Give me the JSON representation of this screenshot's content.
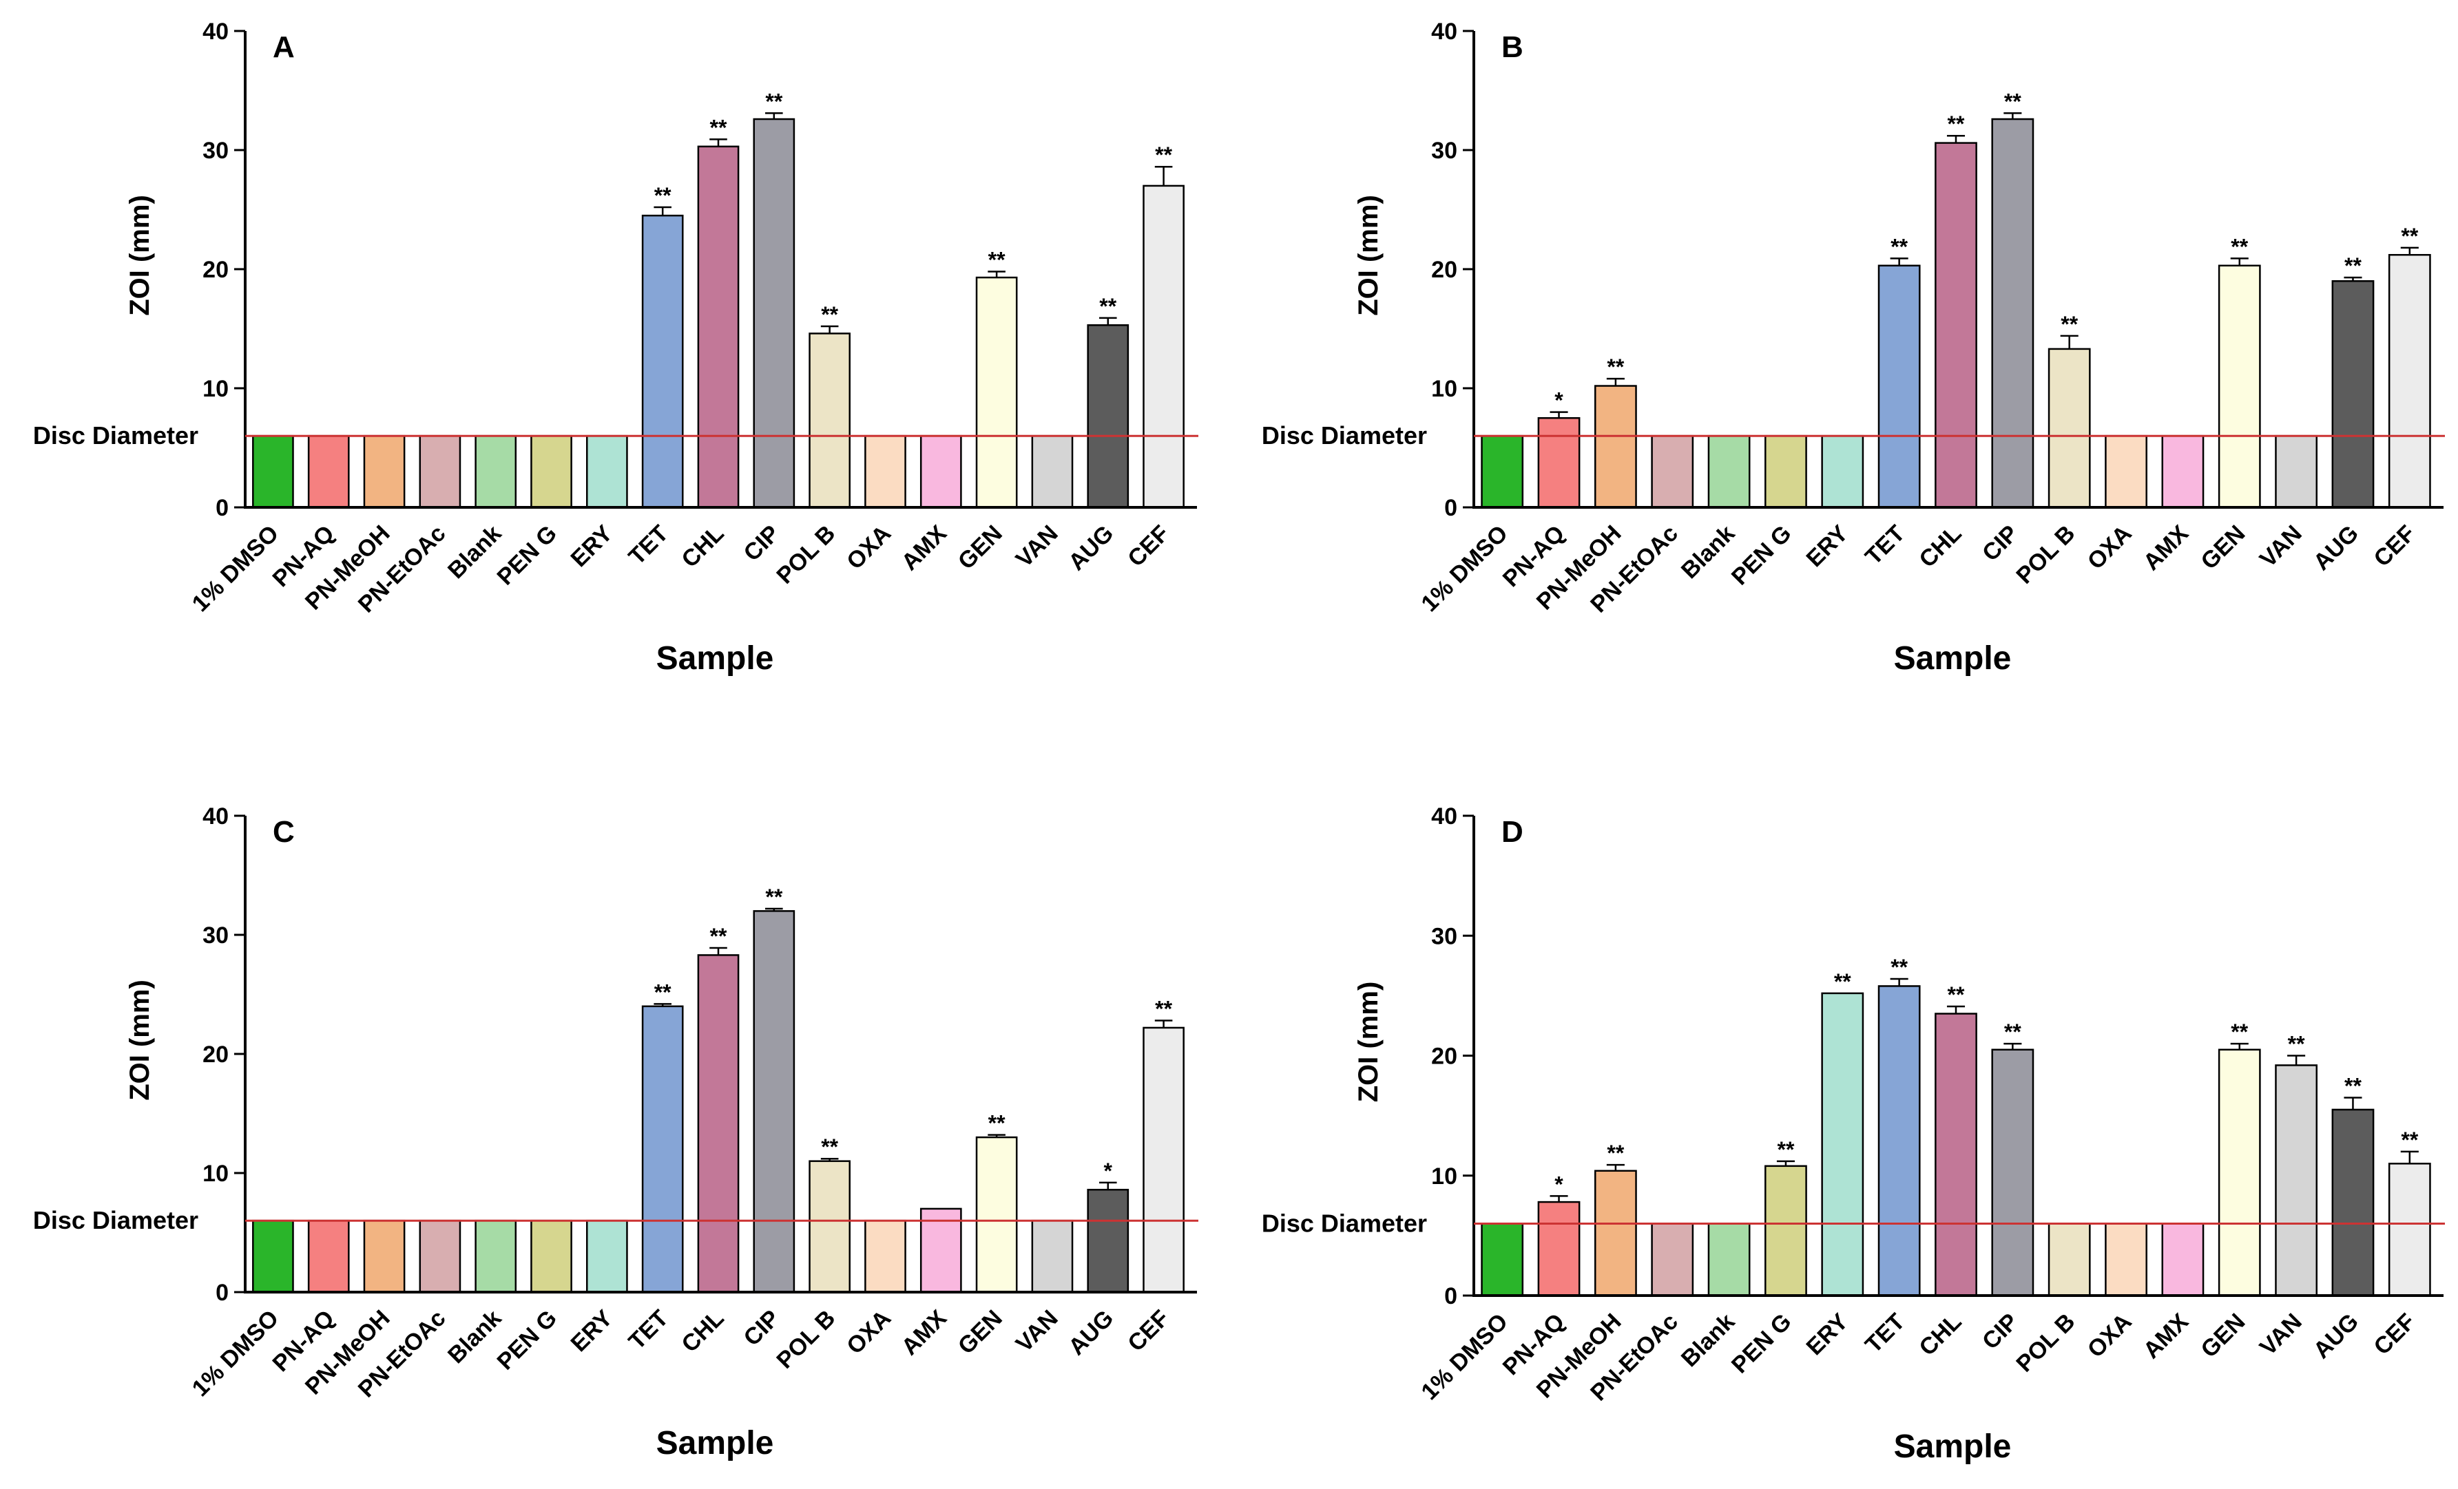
{
  "chart_data": [
    {
      "type": "bar",
      "panel_label": "A",
      "xlabel": "Sample",
      "ylabel": "ZOI (mm)",
      "ylim": [
        0,
        40
      ],
      "yticks": [
        "0",
        "10",
        "20",
        "30",
        "40"
      ],
      "reference_line": {
        "label": "Disc Diameter",
        "value": 6,
        "color": "#cc3333"
      },
      "categories": [
        "1% DMSO",
        "PN-AQ",
        "PN-MeOH",
        "PN-EtOAc",
        "Blank",
        "PEN G",
        "ERY",
        "TET",
        "CHL",
        "CIP",
        "POL B",
        "OXA",
        "AMX",
        "GEN",
        "VAN",
        "AUG",
        "CEF"
      ],
      "values": [
        6,
        6,
        6,
        6,
        6,
        6,
        6,
        24.5,
        30.3,
        32.6,
        14.6,
        6,
        6,
        19.3,
        6,
        15.3,
        27.0
      ],
      "errors": [
        0,
        0,
        0,
        0,
        0,
        0,
        0,
        0.7,
        0.6,
        0.5,
        0.6,
        0,
        0,
        0.5,
        0,
        0.6,
        1.6
      ],
      "significance": [
        "",
        "",
        "",
        "",
        "",
        "",
        "",
        "**",
        "**",
        "**",
        "**",
        "",
        "",
        "**",
        "",
        "**",
        "**"
      ]
    },
    {
      "type": "bar",
      "panel_label": "B",
      "xlabel": "Sample",
      "ylabel": "ZOI (mm)",
      "ylim": [
        0,
        40
      ],
      "yticks": [
        "0",
        "10",
        "20",
        "30",
        "40"
      ],
      "reference_line": {
        "label": "Disc Diameter",
        "value": 6,
        "color": "#cc3333"
      },
      "categories": [
        "1% DMSO",
        "PN-AQ",
        "PN-MeOH",
        "PN-EtOAc",
        "Blank",
        "PEN G",
        "ERY",
        "TET",
        "CHL",
        "CIP",
        "POL B",
        "OXA",
        "AMX",
        "GEN",
        "VAN",
        "AUG",
        "CEF"
      ],
      "values": [
        6,
        7.5,
        10.2,
        6,
        6,
        6,
        6,
        20.3,
        30.6,
        32.6,
        13.3,
        6,
        6,
        20.3,
        6,
        19.0,
        21.2
      ],
      "errors": [
        0,
        0.5,
        0.6,
        0,
        0,
        0,
        0,
        0.6,
        0.6,
        0.5,
        1.1,
        0,
        0,
        0.6,
        0,
        0.3,
        0.6
      ],
      "significance": [
        "",
        "*",
        "**",
        "",
        "",
        "",
        "",
        "**",
        "**",
        "**",
        "**",
        "",
        "",
        "**",
        "",
        "**",
        "**"
      ]
    },
    {
      "type": "bar",
      "panel_label": "C",
      "xlabel": "Sample",
      "ylabel": "ZOI (mm)",
      "ylim": [
        0,
        40
      ],
      "yticks": [
        "0",
        "10",
        "20",
        "30",
        "40"
      ],
      "reference_line": {
        "label": "Disc Diameter",
        "value": 6,
        "color": "#cc3333"
      },
      "categories": [
        "1% DMSO",
        "PN-AQ",
        "PN-MeOH",
        "PN-EtOAc",
        "Blank",
        "PEN G",
        "ERY",
        "TET",
        "CHL",
        "CIP",
        "POL B",
        "OXA",
        "AMX",
        "GEN",
        "VAN",
        "AUG",
        "CEF"
      ],
      "values": [
        6,
        6,
        6,
        6,
        6,
        6,
        6,
        24.0,
        28.3,
        32.0,
        11.0,
        6,
        7.0,
        13.0,
        6,
        8.6,
        22.2
      ],
      "errors": [
        0,
        0,
        0,
        0,
        0,
        0,
        0,
        0.2,
        0.6,
        0.2,
        0.2,
        0,
        0,
        0.2,
        0,
        0.6,
        0.6
      ],
      "significance": [
        "",
        "",
        "",
        "",
        "",
        "",
        "",
        "**",
        "**",
        "**",
        "**",
        "",
        "",
        "**",
        "",
        "*",
        "**"
      ]
    },
    {
      "type": "bar",
      "panel_label": "D",
      "xlabel": "Sample",
      "ylabel": "ZOI (mm)",
      "ylim": [
        0,
        40
      ],
      "yticks": [
        "0",
        "10",
        "20",
        "30",
        "40"
      ],
      "reference_line": {
        "label": "Disc Diameter",
        "value": 6,
        "color": "#cc3333"
      },
      "categories": [
        "1% DMSO",
        "PN-AQ",
        "PN-MeOH",
        "PN-EtOAc",
        "Blank",
        "PEN G",
        "ERY",
        "TET",
        "CHL",
        "CIP",
        "POL B",
        "OXA",
        "AMX",
        "GEN",
        "VAN",
        "AUG",
        "CEF"
      ],
      "values": [
        6,
        7.8,
        10.4,
        6,
        6,
        10.8,
        25.2,
        25.8,
        23.5,
        20.5,
        6,
        6,
        6,
        20.5,
        19.2,
        15.5,
        11.0
      ],
      "errors": [
        0,
        0.5,
        0.5,
        0,
        0,
        0.4,
        0,
        0.6,
        0.6,
        0.5,
        0,
        0,
        0,
        0.5,
        0.8,
        1.0,
        1.0
      ],
      "significance": [
        "",
        "*",
        "**",
        "",
        "",
        "**",
        "**",
        "**",
        "**",
        "**",
        "",
        "",
        "",
        "**",
        "**",
        "**",
        "**"
      ]
    }
  ],
  "bar_colors": [
    "#2ab52a",
    "#f58080",
    "#f2b482",
    "#d8aeb0",
    "#a6dba6",
    "#d6d68f",
    "#aee3d4",
    "#86a5d6",
    "#c27898",
    "#9c9ca5",
    "#ece4c6",
    "#fbdcc2",
    "#f9b8df",
    "#fdfde0",
    "#d5d5d5",
    "#5c5c5c",
    "#ececec"
  ]
}
